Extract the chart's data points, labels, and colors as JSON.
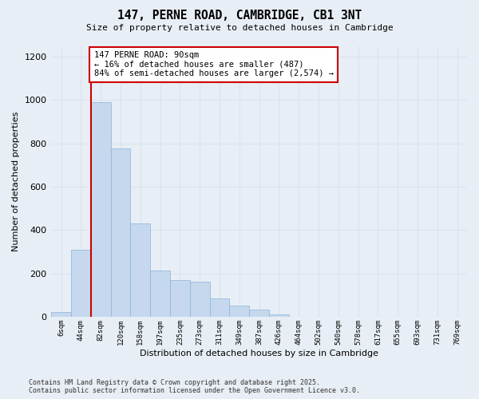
{
  "title": "147, PERNE ROAD, CAMBRIDGE, CB1 3NT",
  "subtitle": "Size of property relative to detached houses in Cambridge",
  "xlabel": "Distribution of detached houses by size in Cambridge",
  "ylabel": "Number of detached properties",
  "categories": [
    "6sqm",
    "44sqm",
    "82sqm",
    "120sqm",
    "158sqm",
    "197sqm",
    "235sqm",
    "273sqm",
    "311sqm",
    "349sqm",
    "387sqm",
    "426sqm",
    "464sqm",
    "502sqm",
    "540sqm",
    "578sqm",
    "617sqm",
    "655sqm",
    "693sqm",
    "731sqm",
    "769sqm"
  ],
  "values": [
    20,
    308,
    990,
    775,
    430,
    215,
    170,
    160,
    85,
    50,
    33,
    10,
    0,
    0,
    0,
    0,
    0,
    0,
    0,
    0,
    0
  ],
  "bar_color": "#c5d8ee",
  "bar_edgecolor": "#8ab4d8",
  "vline_position": 1.5,
  "vline_color": "#cc0000",
  "annotation_text": "147 PERNE ROAD: 90sqm\n← 16% of detached houses are smaller (487)\n84% of semi-detached houses are larger (2,574) →",
  "annotation_box_edgecolor": "#cc0000",
  "ylim": [
    0,
    1250
  ],
  "yticks": [
    0,
    200,
    400,
    600,
    800,
    1000,
    1200
  ],
  "background_color": "#e8eef5",
  "grid_color": "#d8e4f0",
  "footer_line1": "Contains HM Land Registry data © Crown copyright and database right 2025.",
  "footer_line2": "Contains public sector information licensed under the Open Government Licence v3.0."
}
